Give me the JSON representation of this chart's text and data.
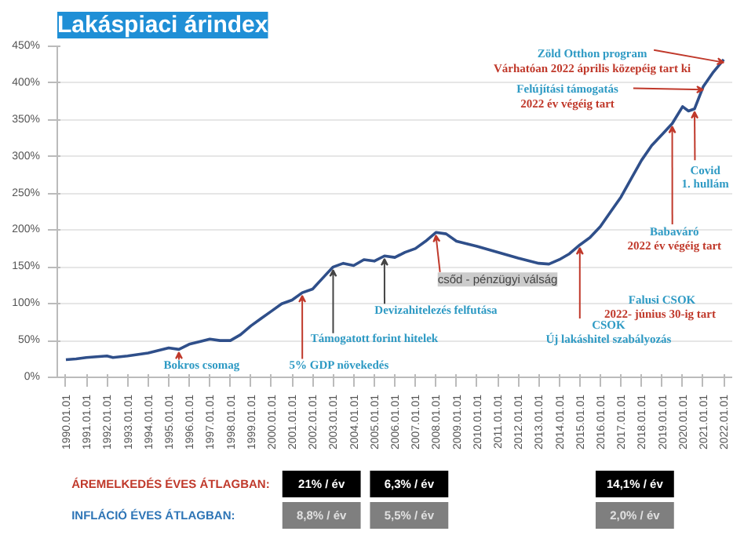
{
  "chart_data": {
    "type": "line",
    "title": "Lakáspiaci árindex",
    "x": [
      "1990-01-01",
      "1990-07-01",
      "1991-01-01",
      "1992-01-01",
      "1992-04-15",
      "1993-01-01",
      "1994-01-01",
      "1995-01-01",
      "1995-07-01",
      "1996-01-01",
      "1997-01-01",
      "1997-07-01",
      "1998-01-01",
      "1998-07-01",
      "1999-01-01",
      "1999-07-01",
      "2000-01-01",
      "2000-07-01",
      "2001-01-01",
      "2001-07-01",
      "2002-01-01",
      "2002-07-01",
      "2003-01-01",
      "2003-07-01",
      "2004-01-01",
      "2004-07-01",
      "2005-01-01",
      "2005-07-01",
      "2006-01-01",
      "2006-07-01",
      "2007-01-01",
      "2007-07-01",
      "2008-01-01",
      "2008-07-01",
      "2009-01-01",
      "2010-01-01",
      "2011-01-01",
      "2012-01-01",
      "2013-01-01",
      "2013-07-01",
      "2014-01-01",
      "2014-07-01",
      "2015-01-01",
      "2015-07-01",
      "2016-01-01",
      "2016-07-01",
      "2017-01-01",
      "2017-07-01",
      "2018-01-01",
      "2018-07-01",
      "2019-01-01",
      "2019-07-01",
      "2020-01-01",
      "2020-04-15",
      "2020-08-01",
      "2021-01-01",
      "2021-07-01",
      "2022-01-01"
    ],
    "series": [
      {
        "color": "#2f4f8a",
        "values": [
          24,
          25,
          27,
          29,
          27,
          29,
          33,
          40,
          38,
          45,
          52,
          50,
          50,
          58,
          70,
          80,
          90,
          100,
          105,
          115,
          120,
          135,
          150,
          155,
          152,
          160,
          158,
          165,
          163,
          170,
          175,
          185,
          197,
          195,
          185,
          178,
          170,
          162,
          155,
          154,
          160,
          168,
          180,
          190,
          205,
          225,
          245,
          270,
          295,
          315,
          330,
          345,
          368,
          362,
          365,
          395,
          415,
          432
        ]
      }
    ],
    "xlim": [
      "1989-08-01",
      "2022-06-01"
    ],
    "ylim": [
      0,
      450
    ],
    "yticks": [
      {
        "value": 0,
        "label": "0%"
      },
      {
        "value": 50,
        "label": "50%"
      },
      {
        "value": 100,
        "label": "100%"
      },
      {
        "value": 150,
        "label": "150%"
      },
      {
        "value": 200,
        "label": "200%"
      },
      {
        "value": 250,
        "label": "250%"
      },
      {
        "value": 300,
        "label": "300%"
      },
      {
        "value": 350,
        "label": "350%"
      },
      {
        "value": 400,
        "label": "400%"
      },
      {
        "value": 450,
        "label": "450%"
      }
    ],
    "xticks": [
      {
        "value": "1990-01-01",
        "label": "1990.01.01"
      },
      {
        "value": "1991-01-01",
        "label": "1991.01.01"
      },
      {
        "value": "1992-01-01",
        "label": "1992.01.01"
      },
      {
        "value": "1993-01-01",
        "label": "1993.01.01"
      },
      {
        "value": "1994-01-01",
        "label": "1994.01.01"
      },
      {
        "value": "1995-01-01",
        "label": "1995.01.01"
      },
      {
        "value": "1996-01-01",
        "label": "1996.01.01"
      },
      {
        "value": "1997-01-01",
        "label": "1997.01.01"
      },
      {
        "value": "1998-01-01",
        "label": "1998.01.01"
      },
      {
        "value": "1999-01-01",
        "label": "1999.01.01"
      },
      {
        "value": "2000-01-01",
        "label": "2000.01.01"
      },
      {
        "value": "2001-01-01",
        "label": "2001.01.01"
      },
      {
        "value": "2002-01-01",
        "label": "2002.01.01"
      },
      {
        "value": "2003-01-01",
        "label": "2003.01.01"
      },
      {
        "value": "2004-01-01",
        "label": "2004.01.01"
      },
      {
        "value": "2005-01-01",
        "label": "2005.01.01"
      },
      {
        "value": "2006-01-01",
        "label": "2006.01.01"
      },
      {
        "value": "2007-01-01",
        "label": "2007.01.01"
      },
      {
        "value": "2008-01-01",
        "label": "2008.01.01"
      },
      {
        "value": "2009-01-01",
        "label": "2009.01.01"
      },
      {
        "value": "2010-01-01",
        "label": "2010.01.01"
      },
      {
        "value": "2011-01-01",
        "label": "2011.01.01"
      },
      {
        "value": "2012-01-01",
        "label": "2012.01.01"
      },
      {
        "value": "2013-01-01",
        "label": "2013.01.01"
      },
      {
        "value": "2014-01-01",
        "label": "2014.01.01"
      },
      {
        "value": "2015-01-01",
        "label": "2015.01.01"
      },
      {
        "value": "2016-01-01",
        "label": "2016.01.01"
      },
      {
        "value": "2017-01-01",
        "label": "2017.01.01"
      },
      {
        "value": "2018-01-01",
        "label": "2018.01.01"
      },
      {
        "value": "2019-01-01",
        "label": "2019.01.01"
      },
      {
        "value": "2020-01-01",
        "label": "2020.01.01"
      },
      {
        "value": "2021-01-01",
        "label": "2021.01.01"
      },
      {
        "value": "2022-01-01",
        "label": "2022.01.01"
      }
    ],
    "grid": "y",
    "annotations": [
      {
        "text": "Zöld Otthon program",
        "x": "2022-01-01",
        "y": 432
      },
      "Várhatóan 2022 április közepéig tart ki",
      {
        "text": "Felújítási támogatás",
        "x": "2021-01-01",
        "y": 395
      },
      "2022 év végéig tart",
      {
        "text": "Covid",
        "x": "2020-08-01",
        "y": 365
      },
      "1. hullám",
      {
        "text": "Babaváró",
        "x": "2019-07-01",
        "y": 345
      },
      "2022 év végéig tart",
      {
        "text": "csőd - pénzügyi válság",
        "x": "2008-01-01",
        "y": 197
      },
      {
        "text": "Devizahitelezés felfutása",
        "x": "2005-07-01",
        "y": 165
      },
      {
        "text": "Támogatott forint hitelek",
        "x": "2003-01-01",
        "y": 150
      },
      {
        "text": "5% GDP növekedés",
        "x": "2001-07-01",
        "y": 115
      },
      {
        "text": "Bokros csomag",
        "x": "1995-07-01",
        "y": 38
      },
      "Falusi CSOK",
      "2022- június 30-ig tart",
      {
        "text": "CSOK",
        "x": "2015-01-01",
        "y": 180
      },
      "Új lakáshitel szabályozás",
      "ÁREMELKEDÉS ÉVES ÁTLAGBAN:",
      "21% / év",
      "6,3% / év",
      "14,1% / év",
      "INFLÁCIÓ ÉVES ÁTLAGBAN:",
      "8,8% / év",
      "5,5% / év",
      "2,0% / év"
    ]
  }
}
